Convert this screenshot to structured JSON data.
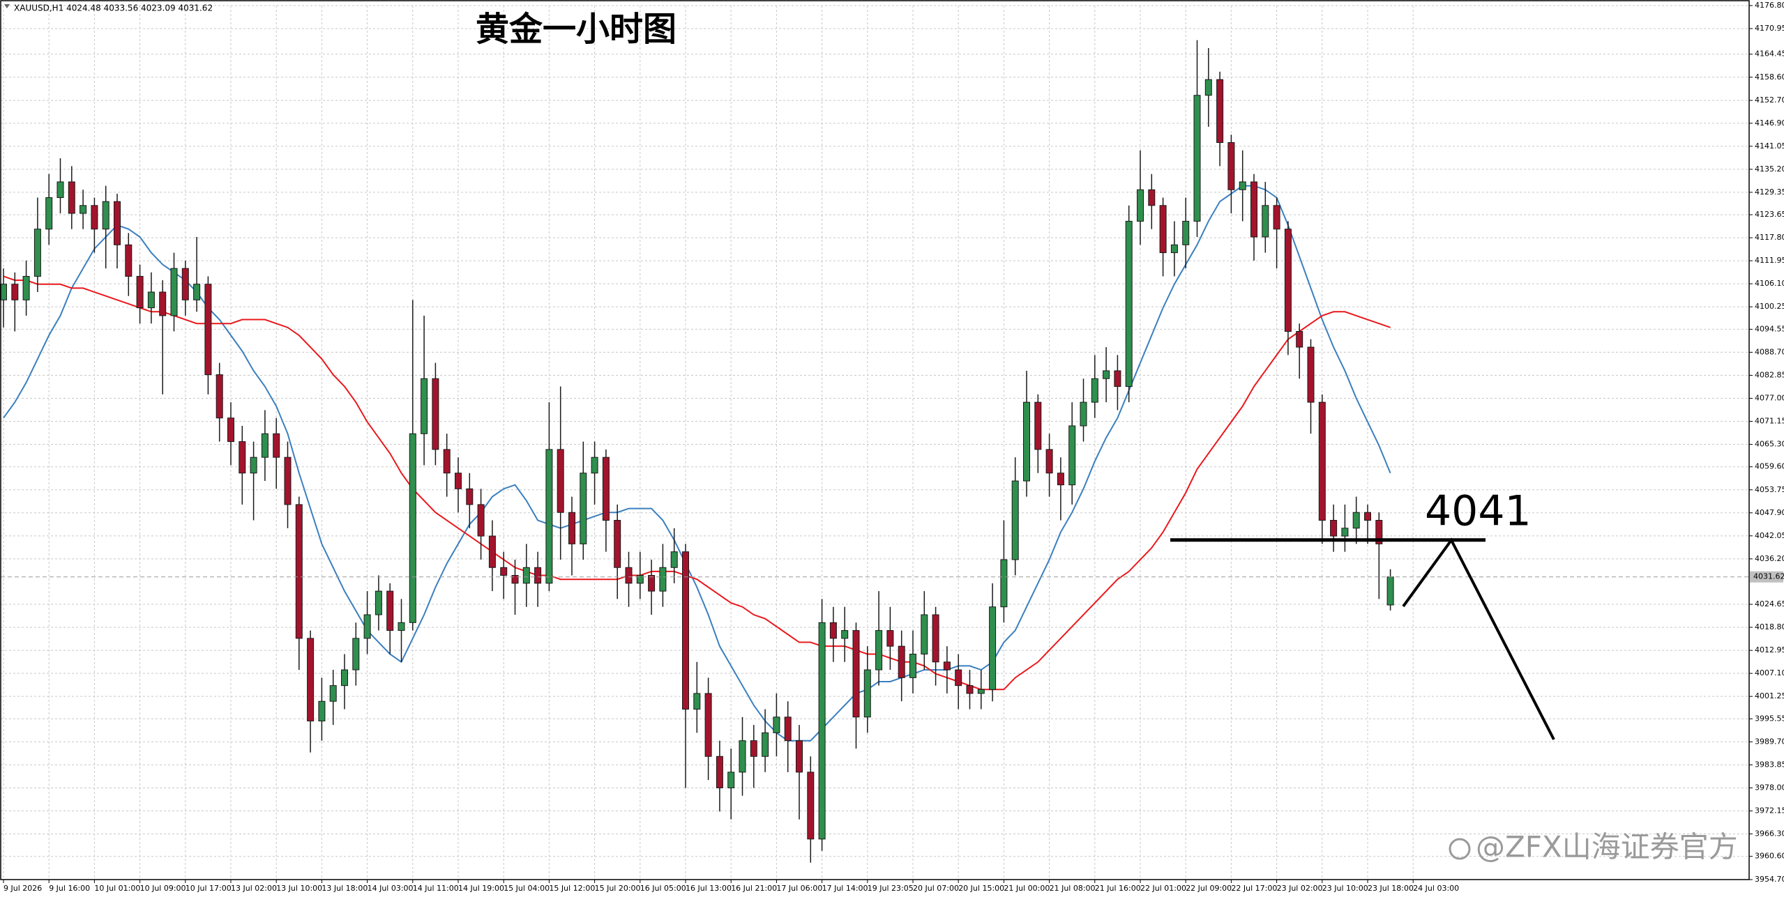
{
  "chart_data": {
    "type": "candlestick",
    "subtitle": "XAUUSD,H1 4024.48 4033.56 4023.09 4031.62",
    "title": "黄金一小时图",
    "watermark": "@ZFX山海证券官方",
    "up_color": "#2f8f4e",
    "down_color": "#a3142c",
    "grid": true,
    "ylim": [
      3954.7,
      4176.8
    ],
    "yticks": [
      {
        "value": 4176.8,
        "label": "4176.80"
      },
      4170.95,
      4164.45,
      {
        "value": 4158.6,
        "label": "4158.60"
      },
      {
        "value": 4152.7,
        "label": "4152.70"
      },
      {
        "value": 4146.9,
        "label": "4146.90"
      },
      4141.05,
      {
        "value": 4135.2,
        "label": "4135.20"
      },
      4129.35,
      4123.65,
      {
        "value": 4117.8,
        "label": "4117.80"
      },
      4111.95,
      {
        "value": 4106.1,
        "label": "4106.10"
      },
      4100.25,
      4094.55,
      {
        "value": 4088.7,
        "label": "4088.70"
      },
      4082.85,
      {
        "value": 4077,
        "label": "4077.00"
      },
      4071.15,
      {
        "value": 4065.3,
        "label": "4065.30"
      },
      {
        "value": 4059.6,
        "label": "4059.60"
      },
      4053.75,
      {
        "value": 4047.9,
        "label": "4047.90"
      },
      4042.05,
      {
        "value": 4036.2,
        "label": "4036.20"
      },
      4024.65,
      {
        "value": 4018.8,
        "label": "4018.80"
      },
      4012.95,
      {
        "value": 4007.1,
        "label": "4007.10"
      },
      4001.25,
      3995.55,
      {
        "value": 3989.7,
        "label": "3989.70"
      },
      3983.85,
      {
        "value": 3978,
        "label": "3978.00"
      },
      3972.15,
      {
        "value": 3966.3,
        "label": "3966.30"
      },
      {
        "value": 3960.6,
        "label": "3960.60"
      },
      {
        "value": 3954.7,
        "label": "3954.70"
      }
    ],
    "xticks": [
      {
        "value": 0,
        "label": "9 Jul 2026"
      },
      {
        "value": 4,
        "label": "9 Jul 16:00"
      },
      {
        "value": 8,
        "label": "10 Jul 01:00"
      },
      {
        "value": 12,
        "label": "10 Jul 09:00"
      },
      {
        "value": 16,
        "label": "10 Jul 17:00"
      },
      {
        "value": 20,
        "label": "13 Jul 02:00"
      },
      {
        "value": 24,
        "label": "13 Jul 10:00"
      },
      {
        "value": 28,
        "label": "13 Jul 18:00"
      },
      {
        "value": 32,
        "label": "14 Jul 03:00"
      },
      {
        "value": 36,
        "label": "14 Jul 11:00"
      },
      {
        "value": 40,
        "label": "14 Jul 19:00"
      },
      {
        "value": 44,
        "label": "15 Jul 04:00"
      },
      {
        "value": 48,
        "label": "15 Jul 12:00"
      },
      {
        "value": 52,
        "label": "15 Jul 20:00"
      },
      {
        "value": 56,
        "label": "16 Jul 05:00"
      },
      {
        "value": 60,
        "label": "16 Jul 13:00"
      },
      {
        "value": 64,
        "label": "16 Jul 21:00"
      },
      {
        "value": 68,
        "label": "17 Jul 06:00"
      },
      {
        "value": 72,
        "label": "17 Jul 14:00"
      },
      {
        "value": 76,
        "label": "19 Jul 23:05"
      },
      {
        "value": 80,
        "label": "20 Jul 07:00"
      },
      {
        "value": 84,
        "label": "20 Jul 15:00"
      },
      {
        "value": 88,
        "label": "21 Jul 00:00"
      },
      {
        "value": 92,
        "label": "21 Jul 08:00"
      },
      {
        "value": 96,
        "label": "21 Jul 16:00"
      },
      {
        "value": 100,
        "label": "22 Jul 01:00"
      },
      {
        "value": 104,
        "label": "22 Jul 09:00"
      },
      {
        "value": 108,
        "label": "22 Jul 17:00"
      },
      {
        "value": 112,
        "label": "23 Jul 02:00"
      },
      {
        "value": 116,
        "label": "23 Jul 10:00"
      },
      {
        "value": 120,
        "label": "23 Jul 18:00"
      },
      {
        "value": 124,
        "label": "24 Jul 03:00"
      }
    ],
    "open": [
      4102,
      4106,
      4102,
      4108,
      4120,
      4128,
      4132,
      4124,
      4126,
      4120,
      4127,
      4116,
      4108,
      4100,
      4104,
      4098,
      4110,
      4102,
      4106,
      4083,
      4072,
      4066,
      4058,
      4062,
      4068,
      4062,
      4050,
      4016,
      3995,
      4000,
      4004,
      4008,
      4016,
      4022,
      4028,
      4018,
      4020,
      4068,
      4082,
      4064,
      4058,
      4054,
      4050,
      4042,
      4034,
      4032,
      4030,
      4034,
      4030,
      4064,
      4048,
      4040,
      4058,
      4062,
      4046,
      4034,
      4030,
      4032,
      4028,
      4034,
      4038,
      3998,
      4002,
      3986,
      3978,
      3982,
      3990,
      3986,
      3992,
      3996,
      3990,
      3982,
      3965,
      4020,
      4016,
      4018,
      3996,
      4008,
      4018,
      4014,
      4006,
      4012,
      4022,
      4010,
      4008,
      4004,
      4002,
      4003,
      4024,
      4036,
      4056,
      4076,
      4064,
      4058,
      4055,
      4070,
      4076,
      4082,
      4084,
      4080,
      4122,
      4130,
      4126,
      4114,
      4116,
      4122,
      4154,
      4158,
      4142,
      4130,
      4132,
      4118,
      4126,
      4120,
      4094,
      4090,
      4076,
      4046,
      4042,
      4044,
      4048,
      4046,
      4024.48
    ],
    "high": [
      4110,
      4109,
      4112,
      4128,
      4134,
      4138,
      4136,
      4130,
      4128,
      4131,
      4129,
      4119,
      4111,
      4109,
      4107,
      4114,
      4112,
      4118,
      4108,
      4086,
      4076,
      4070,
      4066,
      4074,
      4072,
      4066,
      4052,
      4018,
      4006,
      4008,
      4012,
      4020,
      4028,
      4032,
      4030,
      4026,
      4102,
      4098,
      4086,
      4068,
      4062,
      4058,
      4054,
      4046,
      4038,
      4036,
      4040,
      4038,
      4076,
      4080,
      4052,
      4066,
      4066,
      4064,
      4050,
      4038,
      4038,
      4036,
      4040,
      4044,
      4040,
      4010,
      4006,
      3990,
      3988,
      3996,
      3994,
      3998,
      4002,
      4000,
      3994,
      3986,
      4026,
      4024,
      4024,
      4020,
      4014,
      4028,
      4024,
      4018,
      4018,
      4028,
      4024,
      4014,
      4012,
      4008,
      4008,
      4030,
      4046,
      4062,
      4084,
      4078,
      4068,
      4062,
      4076,
      4082,
      4088,
      4090,
      4088,
      4126,
      4140,
      4134,
      4128,
      4122,
      4128,
      4168,
      4166,
      4160,
      4144,
      4140,
      4134,
      4132,
      4128,
      4122,
      4096,
      4092,
      4078,
      4050,
      4050,
      4052,
      4050,
      4048,
      4033.56
    ],
    "low": [
      4095,
      4094,
      4098,
      4104,
      4116,
      4124,
      4120,
      4120,
      4114,
      4110,
      4110,
      4103,
      4096,
      4096,
      4078,
      4094,
      4098,
      4099,
      4078,
      4066,
      4060,
      4050,
      4046,
      4056,
      4054,
      4044,
      4008,
      3987,
      3990,
      3994,
      3998,
      4004,
      4012,
      4018,
      4012,
      4010,
      4018,
      4060,
      4060,
      4052,
      4048,
      4044,
      4036,
      4028,
      4026,
      4022,
      4024,
      4024,
      4028,
      4036,
      4032,
      4036,
      4050,
      4038,
      4026,
      4024,
      4026,
      4022,
      4024,
      4030,
      3978,
      3992,
      3980,
      3972,
      3970,
      3976,
      3978,
      3982,
      3986,
      3982,
      3970,
      3959,
      3962,
      4010,
      4010,
      3988,
      3992,
      4004,
      4008,
      4000,
      4002,
      4008,
      4004,
      4002,
      3998,
      3998,
      3998,
      4000,
      4020,
      4032,
      4052,
      4058,
      4052,
      4046,
      4050,
      4066,
      4072,
      4076,
      4074,
      4076,
      4116,
      4120,
      4108,
      4108,
      4110,
      4118,
      4146,
      4136,
      4124,
      4122,
      4112,
      4114,
      4110,
      4088,
      4082,
      4068,
      4040,
      4038,
      4038,
      4040,
      4040,
      4026,
      4023.09
    ],
    "close": [
      4106,
      4102,
      4108,
      4120,
      4128,
      4132,
      4124,
      4126,
      4120,
      4127,
      4116,
      4108,
      4100,
      4104,
      4098,
      4110,
      4102,
      4106,
      4083,
      4072,
      4066,
      4058,
      4062,
      4068,
      4062,
      4050,
      4016,
      3995,
      4000,
      4004,
      4008,
      4016,
      4022,
      4028,
      4018,
      4020,
      4068,
      4082,
      4064,
      4058,
      4054,
      4050,
      4042,
      4034,
      4032,
      4030,
      4034,
      4030,
      4064,
      4048,
      4040,
      4058,
      4062,
      4046,
      4034,
      4030,
      4032,
      4028,
      4034,
      4038,
      3998,
      4002,
      3986,
      3978,
      3982,
      3990,
      3986,
      3992,
      3996,
      3990,
      3982,
      3965,
      4020,
      4016,
      4018,
      3996,
      4008,
      4018,
      4014,
      4006,
      4012,
      4022,
      4010,
      4008,
      4004,
      4002,
      4003,
      4024,
      4036,
      4056,
      4076,
      4064,
      4058,
      4055,
      4070,
      4076,
      4082,
      4084,
      4080,
      4122,
      4130,
      4126,
      4114,
      4116,
      4122,
      4154,
      4158,
      4142,
      4130,
      4132,
      4118,
      4126,
      4120,
      4094,
      4090,
      4076,
      4046,
      4042,
      4044,
      4048,
      4046,
      4040,
      4031.62
    ],
    "series": [
      {
        "color": "#3a7fbf",
        "values": [
          4072,
          4076,
          4081,
          4087,
          4093,
          4098,
          4105,
          4110,
          4115,
          4118,
          4121,
          4120,
          4118,
          4114,
          4111,
          4109,
          4107,
          4104,
          4100,
          4097,
          4093,
          4089,
          4084,
          4080,
          4075,
          4068,
          4058,
          4049,
          4040,
          4034,
          4028,
          4023,
          4018,
          4015,
          4012,
          4010,
          4016,
          4022,
          4029,
          4035,
          4040,
          4045,
          4048,
          4052,
          4054,
          4055,
          4051,
          4046,
          4045,
          4044,
          4045,
          4046,
          4047,
          4048,
          4048,
          4049,
          4049,
          4049,
          4046,
          4041,
          4035,
          4029,
          4022,
          4014,
          4009,
          4004,
          3999,
          3995,
          3992,
          3990,
          3990,
          3990,
          3993,
          3996,
          3999,
          4002,
          4003,
          4005,
          4005,
          4006,
          4007,
          4008,
          4008,
          4008,
          4009,
          4009,
          4008,
          4010,
          4015,
          4018,
          4024,
          4030,
          4036,
          4043,
          4048,
          4054,
          4061,
          4067,
          4072,
          4079,
          4086,
          4093,
          4100,
          4106,
          4111,
          4116,
          4122,
          4127,
          4129,
          4131,
          4131,
          4130,
          4128,
          4121,
          4113,
          4105,
          4097,
          4090,
          4084,
          4077,
          4071,
          4065,
          4058
        ]
      },
      {
        "color": "#e8181c",
        "values": [
          4108,
          4107,
          4107,
          4106,
          4106,
          4106,
          4105,
          4105,
          4104,
          4103,
          4102,
          4101,
          4100,
          4099,
          4099,
          4098,
          4097,
          4096,
          4096,
          4096,
          4096,
          4097,
          4097,
          4097,
          4096,
          4095,
          4093,
          4090,
          4087,
          4083,
          4080,
          4076,
          4071,
          4067,
          4063,
          4058,
          4054,
          4051,
          4048,
          4046,
          4044,
          4042,
          4040,
          4038,
          4036,
          4034,
          4033,
          4032,
          4032,
          4031,
          4031,
          4031,
          4031,
          4031,
          4031,
          4032,
          4032,
          4033,
          4033,
          4033,
          4032,
          4031,
          4029,
          4027,
          4025,
          4024,
          4022,
          4021,
          4019,
          4017,
          4015,
          4015,
          4014,
          4014,
          4014,
          4013,
          4012,
          4012,
          4011,
          4010,
          4010,
          4009,
          4007,
          4006,
          4005,
          4004,
          4003,
          4003,
          4003,
          4006,
          4008,
          4010,
          4013,
          4016,
          4019,
          4022,
          4025,
          4028,
          4031,
          4033,
          4036,
          4039,
          4043,
          4048,
          4053,
          4059,
          4063,
          4067,
          4071,
          4075,
          4080,
          4084,
          4088,
          4092,
          4094,
          4096,
          4098,
          4099,
          4099,
          4098,
          4097,
          4096,
          4095
        ]
      }
    ],
    "hline": {
      "value": 4041,
      "label": "4041"
    }
  }
}
